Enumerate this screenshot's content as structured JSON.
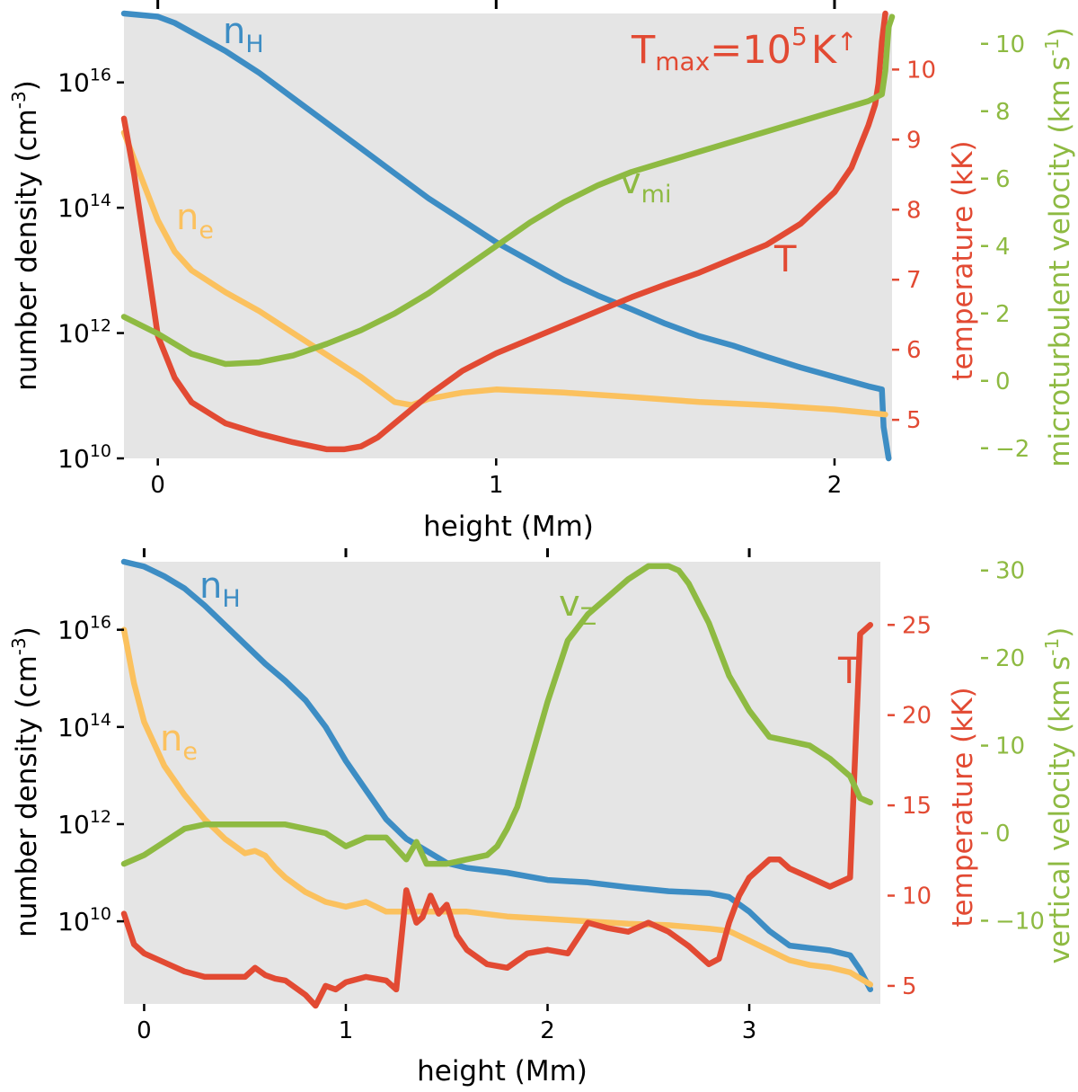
{
  "colors": {
    "nH": "#3d8dc4",
    "ne": "#fbc15e",
    "T": "#e24a33",
    "v": "#8eba42",
    "panel_bg": "#e5e5e5",
    "text": "#000000"
  },
  "chart_data": [
    {
      "type": "line",
      "xlabel": "height (Mm)",
      "ylabel": "number density (cm",
      "ylabel_exp": "-3",
      "ylabel_close": ")",
      "xlim": [
        -0.1,
        2.17
      ],
      "x_ticks": [
        "0",
        "1",
        "2"
      ],
      "x_tick_values": [
        0,
        1,
        2
      ],
      "top_tick_values": [
        0,
        1,
        2
      ],
      "left_log_range": [
        10,
        17.1
      ],
      "left_ticks": [
        {
          "base": "10",
          "exp": "10",
          "value": 10
        },
        {
          "base": "10",
          "exp": "12",
          "value": 12
        },
        {
          "base": "10",
          "exp": "14",
          "value": 14
        },
        {
          "base": "10",
          "exp": "16",
          "value": 16
        }
      ],
      "temp_label": "temperature (kK)",
      "temp_range": [
        4.45,
        10.8
      ],
      "temp_ticks": [
        "5",
        "6",
        "7",
        "8",
        "9",
        "10"
      ],
      "temp_tick_values": [
        5,
        6,
        7,
        8,
        9,
        10
      ],
      "vel_label_main": "microturbulent velocity (km s",
      "vel_label_exp": "-1",
      "vel_label_close": ")",
      "vel_range": [
        -2.3,
        10.9
      ],
      "vel_ticks": [
        "−2",
        "0",
        "2",
        "4",
        "6",
        "8",
        "10"
      ],
      "vel_tick_values": [
        -2,
        0,
        2,
        4,
        6,
        8,
        10
      ],
      "annotations": {
        "nH": {
          "main": "n",
          "sub": "H"
        },
        "ne": {
          "main": "n",
          "sub": "e"
        },
        "v": {
          "main": "v",
          "sub": "mi"
        },
        "T": {
          "main": "T",
          "sub": ""
        },
        "tmax": {
          "t": "T",
          "sub": "max",
          "eq": "=10",
          "exp": "5",
          "unit": "K",
          "arrow": "↑"
        }
      },
      "series": [
        {
          "name": "n_H",
          "axis": "left_log",
          "x": [
            -0.1,
            0.0,
            0.05,
            0.1,
            0.2,
            0.3,
            0.4,
            0.5,
            0.6,
            0.7,
            0.8,
            0.9,
            1.0,
            1.1,
            1.2,
            1.3,
            1.4,
            1.5,
            1.6,
            1.7,
            1.8,
            1.9,
            2.0,
            2.1,
            2.14,
            2.145,
            2.16
          ],
          "y": [
            17.1,
            17.05,
            16.95,
            16.8,
            16.5,
            16.15,
            15.75,
            15.35,
            14.95,
            14.55,
            14.15,
            13.8,
            13.45,
            13.15,
            12.85,
            12.6,
            12.38,
            12.15,
            11.95,
            11.8,
            11.62,
            11.45,
            11.3,
            11.15,
            11.1,
            10.5,
            10.0
          ]
        },
        {
          "name": "n_e",
          "axis": "left_log",
          "x": [
            -0.1,
            -0.05,
            0.0,
            0.05,
            0.1,
            0.2,
            0.3,
            0.4,
            0.5,
            0.6,
            0.7,
            0.75,
            0.8,
            0.9,
            1.0,
            1.2,
            1.4,
            1.6,
            1.8,
            2.0,
            2.15
          ],
          "y": [
            15.2,
            14.5,
            13.8,
            13.3,
            13.0,
            12.65,
            12.35,
            12.0,
            11.65,
            11.3,
            10.9,
            10.85,
            10.95,
            11.05,
            11.1,
            11.05,
            10.98,
            10.9,
            10.85,
            10.78,
            10.7
          ]
        },
        {
          "name": "T",
          "axis": "temperature",
          "x": [
            -0.1,
            -0.07,
            -0.03,
            0.0,
            0.05,
            0.1,
            0.2,
            0.3,
            0.4,
            0.5,
            0.55,
            0.6,
            0.65,
            0.7,
            0.8,
            0.9,
            1.0,
            1.1,
            1.2,
            1.3,
            1.4,
            1.5,
            1.6,
            1.7,
            1.8,
            1.9,
            2.0,
            2.05,
            2.1,
            2.12,
            2.13,
            2.14,
            2.15
          ],
          "y": [
            9.3,
            8.5,
            7.2,
            6.2,
            5.6,
            5.25,
            4.95,
            4.8,
            4.68,
            4.58,
            4.58,
            4.62,
            4.75,
            4.95,
            5.35,
            5.7,
            5.95,
            6.15,
            6.35,
            6.55,
            6.75,
            6.93,
            7.1,
            7.3,
            7.5,
            7.8,
            8.25,
            8.6,
            9.2,
            9.5,
            9.8,
            10.4,
            10.8
          ]
        },
        {
          "name": "v_mi",
          "axis": "velocity",
          "x": [
            -0.1,
            0.0,
            0.1,
            0.2,
            0.3,
            0.4,
            0.5,
            0.6,
            0.7,
            0.8,
            0.9,
            1.0,
            1.1,
            1.2,
            1.3,
            1.4,
            1.5,
            1.6,
            1.7,
            1.8,
            1.9,
            2.0,
            2.1,
            2.14,
            2.15,
            2.16,
            2.17
          ],
          "y": [
            1.9,
            1.4,
            0.8,
            0.5,
            0.55,
            0.75,
            1.1,
            1.5,
            2.0,
            2.6,
            3.3,
            4.0,
            4.7,
            5.3,
            5.8,
            6.2,
            6.5,
            6.8,
            7.1,
            7.4,
            7.7,
            8.0,
            8.3,
            8.5,
            9.2,
            10.5,
            10.8
          ]
        }
      ]
    },
    {
      "type": "line",
      "xlabel": "height (Mm)",
      "ylabel": "number density (cm",
      "ylabel_exp": "-3",
      "ylabel_close": ")",
      "xlim": [
        -0.1,
        3.65
      ],
      "x_ticks": [
        "0",
        "1",
        "2",
        "3"
      ],
      "x_tick_values": [
        0,
        1,
        2,
        3
      ],
      "top_tick_values": [
        0,
        1,
        2,
        3
      ],
      "left_log_range": [
        8.3,
        17.4
      ],
      "left_ticks": [
        {
          "base": "10",
          "exp": "10",
          "value": 10
        },
        {
          "base": "10",
          "exp": "12",
          "value": 12
        },
        {
          "base": "10",
          "exp": "14",
          "value": 14
        },
        {
          "base": "10",
          "exp": "16",
          "value": 16
        }
      ],
      "temp_label": "temperature (kK)",
      "temp_range": [
        4.0,
        28.5
      ],
      "temp_ticks": [
        "5",
        "10",
        "15",
        "20",
        "25"
      ],
      "temp_tick_values": [
        5,
        10,
        15,
        20,
        25
      ],
      "vel_label_main": "vertical velocity (km s",
      "vel_label_exp": "-1",
      "vel_label_close": ")",
      "vel_range": [
        -19.5,
        31
      ],
      "vel_ticks": [
        "−10",
        "0",
        "10",
        "20",
        "30"
      ],
      "vel_tick_values": [
        -10,
        0,
        10,
        20,
        30
      ],
      "annotations": {
        "nH": {
          "main": "n",
          "sub": "H"
        },
        "ne": {
          "main": "n",
          "sub": "e"
        },
        "v": {
          "main": "v",
          "sub": "Z"
        },
        "T": {
          "main": "T",
          "sub": ""
        }
      },
      "series": [
        {
          "name": "n_H",
          "axis": "left_log",
          "x": [
            -0.1,
            0.0,
            0.1,
            0.2,
            0.3,
            0.4,
            0.5,
            0.6,
            0.7,
            0.8,
            0.9,
            1.0,
            1.1,
            1.2,
            1.3,
            1.4,
            1.5,
            1.6,
            1.8,
            2.0,
            2.2,
            2.4,
            2.6,
            2.8,
            2.9,
            3.0,
            3.1,
            3.2,
            3.3,
            3.4,
            3.5,
            3.55,
            3.6
          ],
          "y": [
            17.4,
            17.3,
            17.1,
            16.85,
            16.5,
            16.1,
            15.7,
            15.3,
            14.95,
            14.55,
            14.0,
            13.3,
            12.7,
            12.1,
            11.7,
            11.45,
            11.2,
            11.1,
            11.0,
            10.85,
            10.8,
            10.7,
            10.62,
            10.58,
            10.5,
            10.2,
            9.8,
            9.5,
            9.45,
            9.4,
            9.3,
            9.0,
            8.6
          ]
        },
        {
          "name": "n_e",
          "axis": "left_log",
          "x": [
            -0.1,
            -0.05,
            0.0,
            0.1,
            0.2,
            0.3,
            0.4,
            0.5,
            0.55,
            0.6,
            0.65,
            0.7,
            0.8,
            0.9,
            1.0,
            1.1,
            1.2,
            1.4,
            1.6,
            1.8,
            2.0,
            2.2,
            2.4,
            2.6,
            2.8,
            2.9,
            3.0,
            3.1,
            3.2,
            3.3,
            3.4,
            3.5,
            3.6
          ],
          "y": [
            16.0,
            14.9,
            14.1,
            13.2,
            12.6,
            12.1,
            11.7,
            11.4,
            11.45,
            11.35,
            11.1,
            10.9,
            10.6,
            10.4,
            10.3,
            10.4,
            10.2,
            10.2,
            10.2,
            10.1,
            10.05,
            10.0,
            9.95,
            9.92,
            9.85,
            9.8,
            9.6,
            9.4,
            9.2,
            9.1,
            9.05,
            8.95,
            8.7
          ]
        },
        {
          "name": "T",
          "axis": "temperature",
          "x": [
            -0.1,
            -0.05,
            0.0,
            0.1,
            0.2,
            0.3,
            0.4,
            0.5,
            0.55,
            0.6,
            0.65,
            0.7,
            0.8,
            0.85,
            0.9,
            0.95,
            1.0,
            1.1,
            1.2,
            1.25,
            1.3,
            1.35,
            1.38,
            1.42,
            1.46,
            1.5,
            1.55,
            1.6,
            1.7,
            1.8,
            1.9,
            2.0,
            2.1,
            2.2,
            2.3,
            2.4,
            2.5,
            2.6,
            2.7,
            2.8,
            2.85,
            2.9,
            2.95,
            3.0,
            3.05,
            3.1,
            3.15,
            3.2,
            3.3,
            3.4,
            3.5,
            3.55,
            3.6
          ],
          "y": [
            9.0,
            7.3,
            6.8,
            6.3,
            5.8,
            5.5,
            5.5,
            5.5,
            6.0,
            5.6,
            5.4,
            5.3,
            4.5,
            3.9,
            5.0,
            4.8,
            5.2,
            5.5,
            5.3,
            4.8,
            10.3,
            8.5,
            8.8,
            10.0,
            9.0,
            9.5,
            7.8,
            7.0,
            6.2,
            6.0,
            6.8,
            7.0,
            6.8,
            8.5,
            8.2,
            8.0,
            8.5,
            8.0,
            7.2,
            6.2,
            6.5,
            8.5,
            10.0,
            11.0,
            11.5,
            12.0,
            12.0,
            11.5,
            11.0,
            10.5,
            11.0,
            24.5,
            25.0
          ]
        },
        {
          "name": "v_z",
          "axis": "velocity",
          "x": [
            -0.1,
            0.0,
            0.1,
            0.2,
            0.3,
            0.4,
            0.5,
            0.6,
            0.7,
            0.8,
            0.9,
            1.0,
            1.1,
            1.2,
            1.3,
            1.35,
            1.4,
            1.5,
            1.6,
            1.7,
            1.75,
            1.8,
            1.85,
            1.9,
            2.0,
            2.1,
            2.2,
            2.3,
            2.4,
            2.5,
            2.6,
            2.65,
            2.7,
            2.8,
            2.9,
            3.0,
            3.1,
            3.2,
            3.3,
            3.4,
            3.5,
            3.55,
            3.6
          ],
          "y": [
            -3.5,
            -2.5,
            -1.0,
            0.5,
            1.0,
            1.0,
            1.0,
            1.0,
            1.0,
            0.5,
            0.0,
            -1.5,
            -0.5,
            -0.5,
            -3.0,
            -1.0,
            -3.5,
            -3.5,
            -3.0,
            -2.5,
            -1.5,
            0.5,
            3.0,
            7.0,
            15.0,
            22.0,
            25.0,
            27.0,
            29.0,
            30.5,
            30.5,
            30.0,
            28.5,
            24.0,
            18.0,
            14.0,
            11.0,
            10.5,
            10.0,
            8.5,
            6.5,
            4.0,
            3.5
          ]
        }
      ]
    }
  ]
}
